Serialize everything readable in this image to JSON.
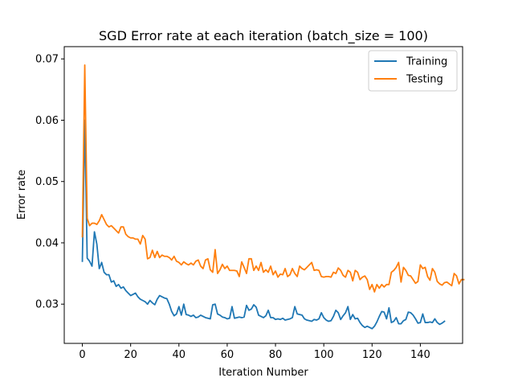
{
  "chart_data": {
    "type": "line",
    "title": "SGD Error rate at each iteration (batch_size = 100)",
    "xlabel": "Iteration Number",
    "ylabel": "Error rate",
    "xlim": [
      -7.5,
      157.5
    ],
    "ylim": [
      0.0236,
      0.072
    ],
    "xticks": [
      0,
      20,
      40,
      60,
      80,
      100,
      120,
      140
    ],
    "yticks": [
      0.03,
      0.04,
      0.05,
      0.06,
      0.07
    ],
    "ytick_labels": [
      "0.03",
      "0.04",
      "0.05",
      "0.06",
      "0.07"
    ],
    "grid": false,
    "legend_position": "top-right",
    "series": [
      {
        "name": "Training",
        "color": "#1f77b4",
        "values": [
          0.037,
          0.06,
          0.0375,
          0.037,
          0.0362,
          0.0418,
          0.0398,
          0.0358,
          0.0368,
          0.0352,
          0.0348,
          0.0348,
          0.0336,
          0.0338,
          0.0329,
          0.0332,
          0.0326,
          0.0328,
          0.0322,
          0.0318,
          0.0314,
          0.0316,
          0.0318,
          0.0312,
          0.0308,
          0.0306,
          0.0304,
          0.03,
          0.0306,
          0.0302,
          0.0299,
          0.0308,
          0.0314,
          0.0312,
          0.031,
          0.0309,
          0.03,
          0.0288,
          0.0281,
          0.0284,
          0.0296,
          0.0282,
          0.03,
          0.0283,
          0.0282,
          0.028,
          0.0282,
          0.0278,
          0.0279,
          0.0282,
          0.028,
          0.0278,
          0.0277,
          0.0276,
          0.0299,
          0.03,
          0.0284,
          0.0282,
          0.0279,
          0.0278,
          0.0276,
          0.0277,
          0.0296,
          0.0277,
          0.0278,
          0.0279,
          0.0278,
          0.0279,
          0.0298,
          0.029,
          0.0292,
          0.0299,
          0.0295,
          0.0282,
          0.028,
          0.0278,
          0.0281,
          0.029,
          0.0278,
          0.0278,
          0.0275,
          0.0276,
          0.0275,
          0.0277,
          0.0274,
          0.0275,
          0.0276,
          0.0278,
          0.0296,
          0.0284,
          0.0283,
          0.0282,
          0.0276,
          0.0274,
          0.0273,
          0.0272,
          0.0275,
          0.0274,
          0.0276,
          0.0286,
          0.0278,
          0.0274,
          0.0272,
          0.0273,
          0.028,
          0.029,
          0.0286,
          0.0275,
          0.0281,
          0.0286,
          0.0296,
          0.0275,
          0.0283,
          0.0276,
          0.0277,
          0.027,
          0.0265,
          0.0262,
          0.0264,
          0.0262,
          0.026,
          0.0264,
          0.0271,
          0.028,
          0.0288,
          0.0287,
          0.0276,
          0.0294,
          0.027,
          0.0272,
          0.0278,
          0.0268,
          0.0268,
          0.0273,
          0.0275,
          0.0287,
          0.0286,
          0.0282,
          0.0276,
          0.0269,
          0.027,
          0.0284,
          0.027,
          0.027,
          0.0271,
          0.027,
          0.0276,
          0.027,
          0.0267,
          0.0269,
          0.0272
        ]
      },
      {
        "name": "Testing",
        "color": "#ff7f0e",
        "values": [
          0.041,
          0.069,
          0.044,
          0.0428,
          0.0432,
          0.0432,
          0.043,
          0.0436,
          0.0446,
          0.0438,
          0.043,
          0.0426,
          0.0428,
          0.0424,
          0.042,
          0.0416,
          0.0426,
          0.0426,
          0.0414,
          0.041,
          0.0408,
          0.0408,
          0.0406,
          0.0406,
          0.0398,
          0.0412,
          0.0406,
          0.0374,
          0.0376,
          0.0388,
          0.0376,
          0.0386,
          0.0376,
          0.038,
          0.0378,
          0.0378,
          0.0376,
          0.0372,
          0.0378,
          0.037,
          0.0368,
          0.0364,
          0.0369,
          0.0366,
          0.0364,
          0.0367,
          0.0364,
          0.037,
          0.0372,
          0.0362,
          0.0358,
          0.0372,
          0.0374,
          0.0356,
          0.0352,
          0.0389,
          0.035,
          0.0356,
          0.0365,
          0.0358,
          0.0362,
          0.0355,
          0.0355,
          0.0355,
          0.0354,
          0.0345,
          0.0369,
          0.036,
          0.035,
          0.0374,
          0.0374,
          0.0355,
          0.0362,
          0.0355,
          0.0368,
          0.0352,
          0.0356,
          0.0352,
          0.0362,
          0.0348,
          0.0354,
          0.0344,
          0.0349,
          0.0348,
          0.0358,
          0.0345,
          0.0348,
          0.0358,
          0.035,
          0.0345,
          0.0362,
          0.0358,
          0.0356,
          0.036,
          0.0364,
          0.0368,
          0.0355,
          0.0356,
          0.0355,
          0.0345,
          0.0344,
          0.0345,
          0.0345,
          0.0344,
          0.0352,
          0.035,
          0.0359,
          0.0355,
          0.0347,
          0.0344,
          0.0355,
          0.0352,
          0.0338,
          0.0355,
          0.0352,
          0.034,
          0.0344,
          0.0346,
          0.034,
          0.0324,
          0.0332,
          0.032,
          0.0332,
          0.0326,
          0.0332,
          0.0328,
          0.0332,
          0.0332,
          0.0352,
          0.0355,
          0.036,
          0.0368,
          0.0336,
          0.036,
          0.0355,
          0.0347,
          0.0346,
          0.034,
          0.0334,
          0.0337,
          0.0364,
          0.0358,
          0.036,
          0.0345,
          0.0339,
          0.0358,
          0.0352,
          0.0337,
          0.0333,
          0.0331,
          0.0335,
          0.0336,
          0.0333,
          0.033,
          0.035,
          0.0346,
          0.0333,
          0.034,
          0.034
        ]
      }
    ]
  }
}
